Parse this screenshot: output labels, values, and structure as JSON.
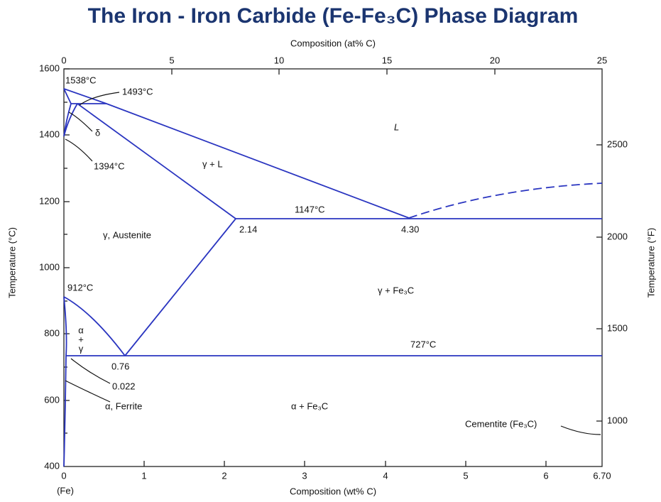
{
  "header": {
    "title": "The Iron - Iron Carbide (Fe-Fe₃C) Phase Diagram"
  },
  "axes": {
    "top": {
      "label": "Composition (at% C)",
      "ticks": [
        "0",
        "5",
        "10",
        "15",
        "20",
        "25"
      ]
    },
    "bottom": {
      "label": "Composition (wt% C)",
      "ticks": [
        "0",
        "1",
        "2",
        "3",
        "4",
        "5",
        "6",
        "6.70"
      ],
      "origin_label": "(Fe)"
    },
    "left": {
      "label": "Temperature (°C)",
      "ticks": [
        "400",
        "600",
        "800",
        "1000",
        "1200",
        "1400",
        "1600"
      ]
    },
    "right": {
      "label": "Temperature (°F)",
      "ticks": [
        "1000",
        "1500",
        "2000",
        "2500"
      ]
    }
  },
  "regions": {
    "liquid": "L",
    "gamma_liquid": "γ + L",
    "austenite": "γ, Austenite",
    "gamma_cementite": "γ + Fe₃C",
    "alpha_cementite": "α + Fe₃C",
    "alpha_gamma": [
      "α",
      "+",
      "γ"
    ],
    "delta": "δ"
  },
  "annotations": {
    "t1538": "1538°C",
    "t1493": "1493°C",
    "t1394": "1394°C",
    "t1147": "1147°C",
    "t912": "912°C",
    "t727": "727°C",
    "c214": "2.14",
    "c430": "4.30",
    "c076": "0.76",
    "c0022": "0.022",
    "ferrite": "α, Ferrite",
    "cementite": "Cementite (Fe₃C)"
  }
}
